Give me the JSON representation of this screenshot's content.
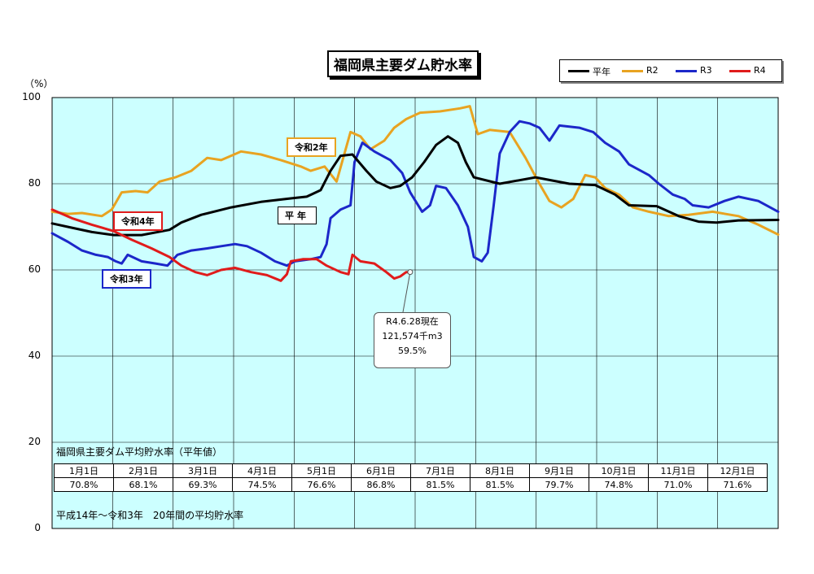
{
  "chart_data": {
    "type": "line",
    "title": "福岡県主要ダム貯水率",
    "y_unit": "（%）",
    "ylim": [
      0,
      100
    ],
    "y_ticks": [
      0,
      20,
      40,
      60,
      80,
      100
    ],
    "x_range_days": [
      0,
      365
    ],
    "grid": true,
    "legend_position": "top-right",
    "series": [
      {
        "name": "平年",
        "color": "#000000",
        "points": [
          [
            0,
            70.8
          ],
          [
            10,
            69.8
          ],
          [
            20,
            68.8
          ],
          [
            31,
            68.1
          ],
          [
            45,
            68.1
          ],
          [
            59,
            69.3
          ],
          [
            65,
            71.0
          ],
          [
            75,
            72.8
          ],
          [
            90,
            74.5
          ],
          [
            105,
            75.8
          ],
          [
            120,
            76.6
          ],
          [
            128,
            77.0
          ],
          [
            135,
            78.5
          ],
          [
            140,
            83.0
          ],
          [
            145,
            86.5
          ],
          [
            151,
            86.8
          ],
          [
            158,
            83.0
          ],
          [
            163,
            80.5
          ],
          [
            170,
            79.0
          ],
          [
            175,
            79.5
          ],
          [
            181,
            81.5
          ],
          [
            187,
            85.0
          ],
          [
            193,
            89.0
          ],
          [
            199,
            91.0
          ],
          [
            204,
            89.5
          ],
          [
            208,
            85.0
          ],
          [
            212,
            81.5
          ],
          [
            225,
            80.0
          ],
          [
            243,
            81.5
          ],
          [
            260,
            80.0
          ],
          [
            273,
            79.7
          ],
          [
            283,
            77.5
          ],
          [
            290,
            75.0
          ],
          [
            304,
            74.8
          ],
          [
            315,
            72.5
          ],
          [
            325,
            71.2
          ],
          [
            334,
            71.0
          ],
          [
            345,
            71.5
          ],
          [
            365,
            71.6
          ]
        ]
      },
      {
        "name": "R2",
        "color": "#e8a321",
        "points": [
          [
            0,
            73.5
          ],
          [
            8,
            73.0
          ],
          [
            15,
            73.2
          ],
          [
            25,
            72.5
          ],
          [
            30,
            74.0
          ],
          [
            35,
            78.0
          ],
          [
            42,
            78.3
          ],
          [
            48,
            78.0
          ],
          [
            54,
            80.5
          ],
          [
            62,
            81.5
          ],
          [
            70,
            83.0
          ],
          [
            78,
            86.0
          ],
          [
            85,
            85.5
          ],
          [
            90,
            86.5
          ],
          [
            95,
            87.5
          ],
          [
            105,
            86.8
          ],
          [
            115,
            85.5
          ],
          [
            125,
            84.0
          ],
          [
            130,
            83.0
          ],
          [
            137,
            84.0
          ],
          [
            143,
            80.5
          ],
          [
            150,
            92.0
          ],
          [
            155,
            91.0
          ],
          [
            160,
            88.0
          ],
          [
            167,
            90.0
          ],
          [
            172,
            93.0
          ],
          [
            178,
            95.0
          ],
          [
            185,
            96.5
          ],
          [
            195,
            96.8
          ],
          [
            205,
            97.5
          ],
          [
            210,
            98.0
          ],
          [
            214,
            91.5
          ],
          [
            220,
            92.5
          ],
          [
            230,
            92.0
          ],
          [
            238,
            86.0
          ],
          [
            245,
            80.0
          ],
          [
            250,
            76.0
          ],
          [
            256,
            74.5
          ],
          [
            262,
            76.5
          ],
          [
            268,
            82.0
          ],
          [
            273,
            81.5
          ],
          [
            278,
            79.0
          ],
          [
            285,
            77.5
          ],
          [
            292,
            74.5
          ],
          [
            300,
            73.5
          ],
          [
            310,
            72.5
          ],
          [
            320,
            72.8
          ],
          [
            332,
            73.5
          ],
          [
            345,
            72.5
          ],
          [
            355,
            70.5
          ],
          [
            365,
            68.2
          ]
        ]
      },
      {
        "name": "R3",
        "color": "#1c27c9",
        "points": [
          [
            0,
            68.5
          ],
          [
            8,
            66.5
          ],
          [
            15,
            64.5
          ],
          [
            22,
            63.5
          ],
          [
            28,
            63.0
          ],
          [
            32,
            62.0
          ],
          [
            35,
            61.5
          ],
          [
            38,
            63.5
          ],
          [
            45,
            62.0
          ],
          [
            52,
            61.5
          ],
          [
            58,
            61.0
          ],
          [
            63,
            63.5
          ],
          [
            70,
            64.5
          ],
          [
            78,
            65.0
          ],
          [
            85,
            65.5
          ],
          [
            92,
            66.0
          ],
          [
            98,
            65.5
          ],
          [
            105,
            64.0
          ],
          [
            112,
            62.0
          ],
          [
            118,
            61.0
          ],
          [
            122,
            62.0
          ],
          [
            130,
            62.5
          ],
          [
            135,
            63.0
          ],
          [
            138,
            66.0
          ],
          [
            140,
            72.0
          ],
          [
            145,
            74.0
          ],
          [
            150,
            75.0
          ],
          [
            152,
            85.0
          ],
          [
            156,
            89.5
          ],
          [
            162,
            87.5
          ],
          [
            170,
            85.5
          ],
          [
            176,
            82.5
          ],
          [
            180,
            78.0
          ],
          [
            186,
            73.5
          ],
          [
            190,
            75.0
          ],
          [
            193,
            79.5
          ],
          [
            198,
            79.0
          ],
          [
            204,
            75.0
          ],
          [
            209,
            70.0
          ],
          [
            212,
            63.0
          ],
          [
            216,
            62.0
          ],
          [
            219,
            64.0
          ],
          [
            222,
            75.0
          ],
          [
            225,
            87.0
          ],
          [
            230,
            92.0
          ],
          [
            235,
            94.5
          ],
          [
            240,
            94.0
          ],
          [
            245,
            93.0
          ],
          [
            250,
            90.0
          ],
          [
            255,
            93.5
          ],
          [
            265,
            93.0
          ],
          [
            272,
            92.0
          ],
          [
            278,
            89.5
          ],
          [
            285,
            87.5
          ],
          [
            290,
            84.5
          ],
          [
            300,
            82.0
          ],
          [
            305,
            80.0
          ],
          [
            312,
            77.5
          ],
          [
            318,
            76.5
          ],
          [
            322,
            75.0
          ],
          [
            330,
            74.5
          ],
          [
            338,
            76.0
          ],
          [
            345,
            77.0
          ],
          [
            355,
            76.0
          ],
          [
            365,
            73.5
          ]
        ]
      },
      {
        "name": "R4",
        "color": "#e01b1b",
        "points": [
          [
            0,
            74.0
          ],
          [
            10,
            72.0
          ],
          [
            20,
            70.5
          ],
          [
            31,
            69.0
          ],
          [
            40,
            67.0
          ],
          [
            50,
            65.0
          ],
          [
            59,
            63.0
          ],
          [
            65,
            61.0
          ],
          [
            72,
            59.5
          ],
          [
            78,
            58.8
          ],
          [
            85,
            60.0
          ],
          [
            92,
            60.5
          ],
          [
            100,
            59.5
          ],
          [
            108,
            58.8
          ],
          [
            115,
            57.5
          ],
          [
            118,
            59.0
          ],
          [
            120,
            62.0
          ],
          [
            126,
            62.5
          ],
          [
            133,
            62.5
          ],
          [
            138,
            61.0
          ],
          [
            145,
            59.5
          ],
          [
            149,
            59.0
          ],
          [
            151,
            63.5
          ],
          [
            155,
            62.0
          ],
          [
            162,
            61.5
          ],
          [
            168,
            59.5
          ],
          [
            172,
            58.0
          ],
          [
            175,
            58.5
          ],
          [
            178,
            59.5
          ],
          [
            180,
            59.5
          ]
        ]
      }
    ],
    "month_labels": [
      "1月1日",
      "2月1日",
      "3月1日",
      "4月1日",
      "5月1日",
      "6月1日",
      "7月1日",
      "8月1日",
      "9月1日",
      "10月1日",
      "11月1日",
      "12月1日"
    ],
    "annotations": {
      "r2": "令和2年",
      "r3": "令和3年",
      "r4": "令和4年",
      "avg": "平年",
      "callout": [
        "R4.6.28現在",
        "121,574千m3",
        "59.5%"
      ],
      "callout_point": [
        180,
        59.5
      ]
    }
  },
  "avg_table": {
    "title": "福岡県主要ダム平均貯水率（平年値）",
    "values": [
      "70.8%",
      "68.1%",
      "69.3%",
      "74.5%",
      "76.6%",
      "86.8%",
      "81.5%",
      "81.5%",
      "79.7%",
      "74.8%",
      "71.0%",
      "71.6%"
    ],
    "footnote": "平成14年～令和3年　20年間の平均貯水率"
  }
}
